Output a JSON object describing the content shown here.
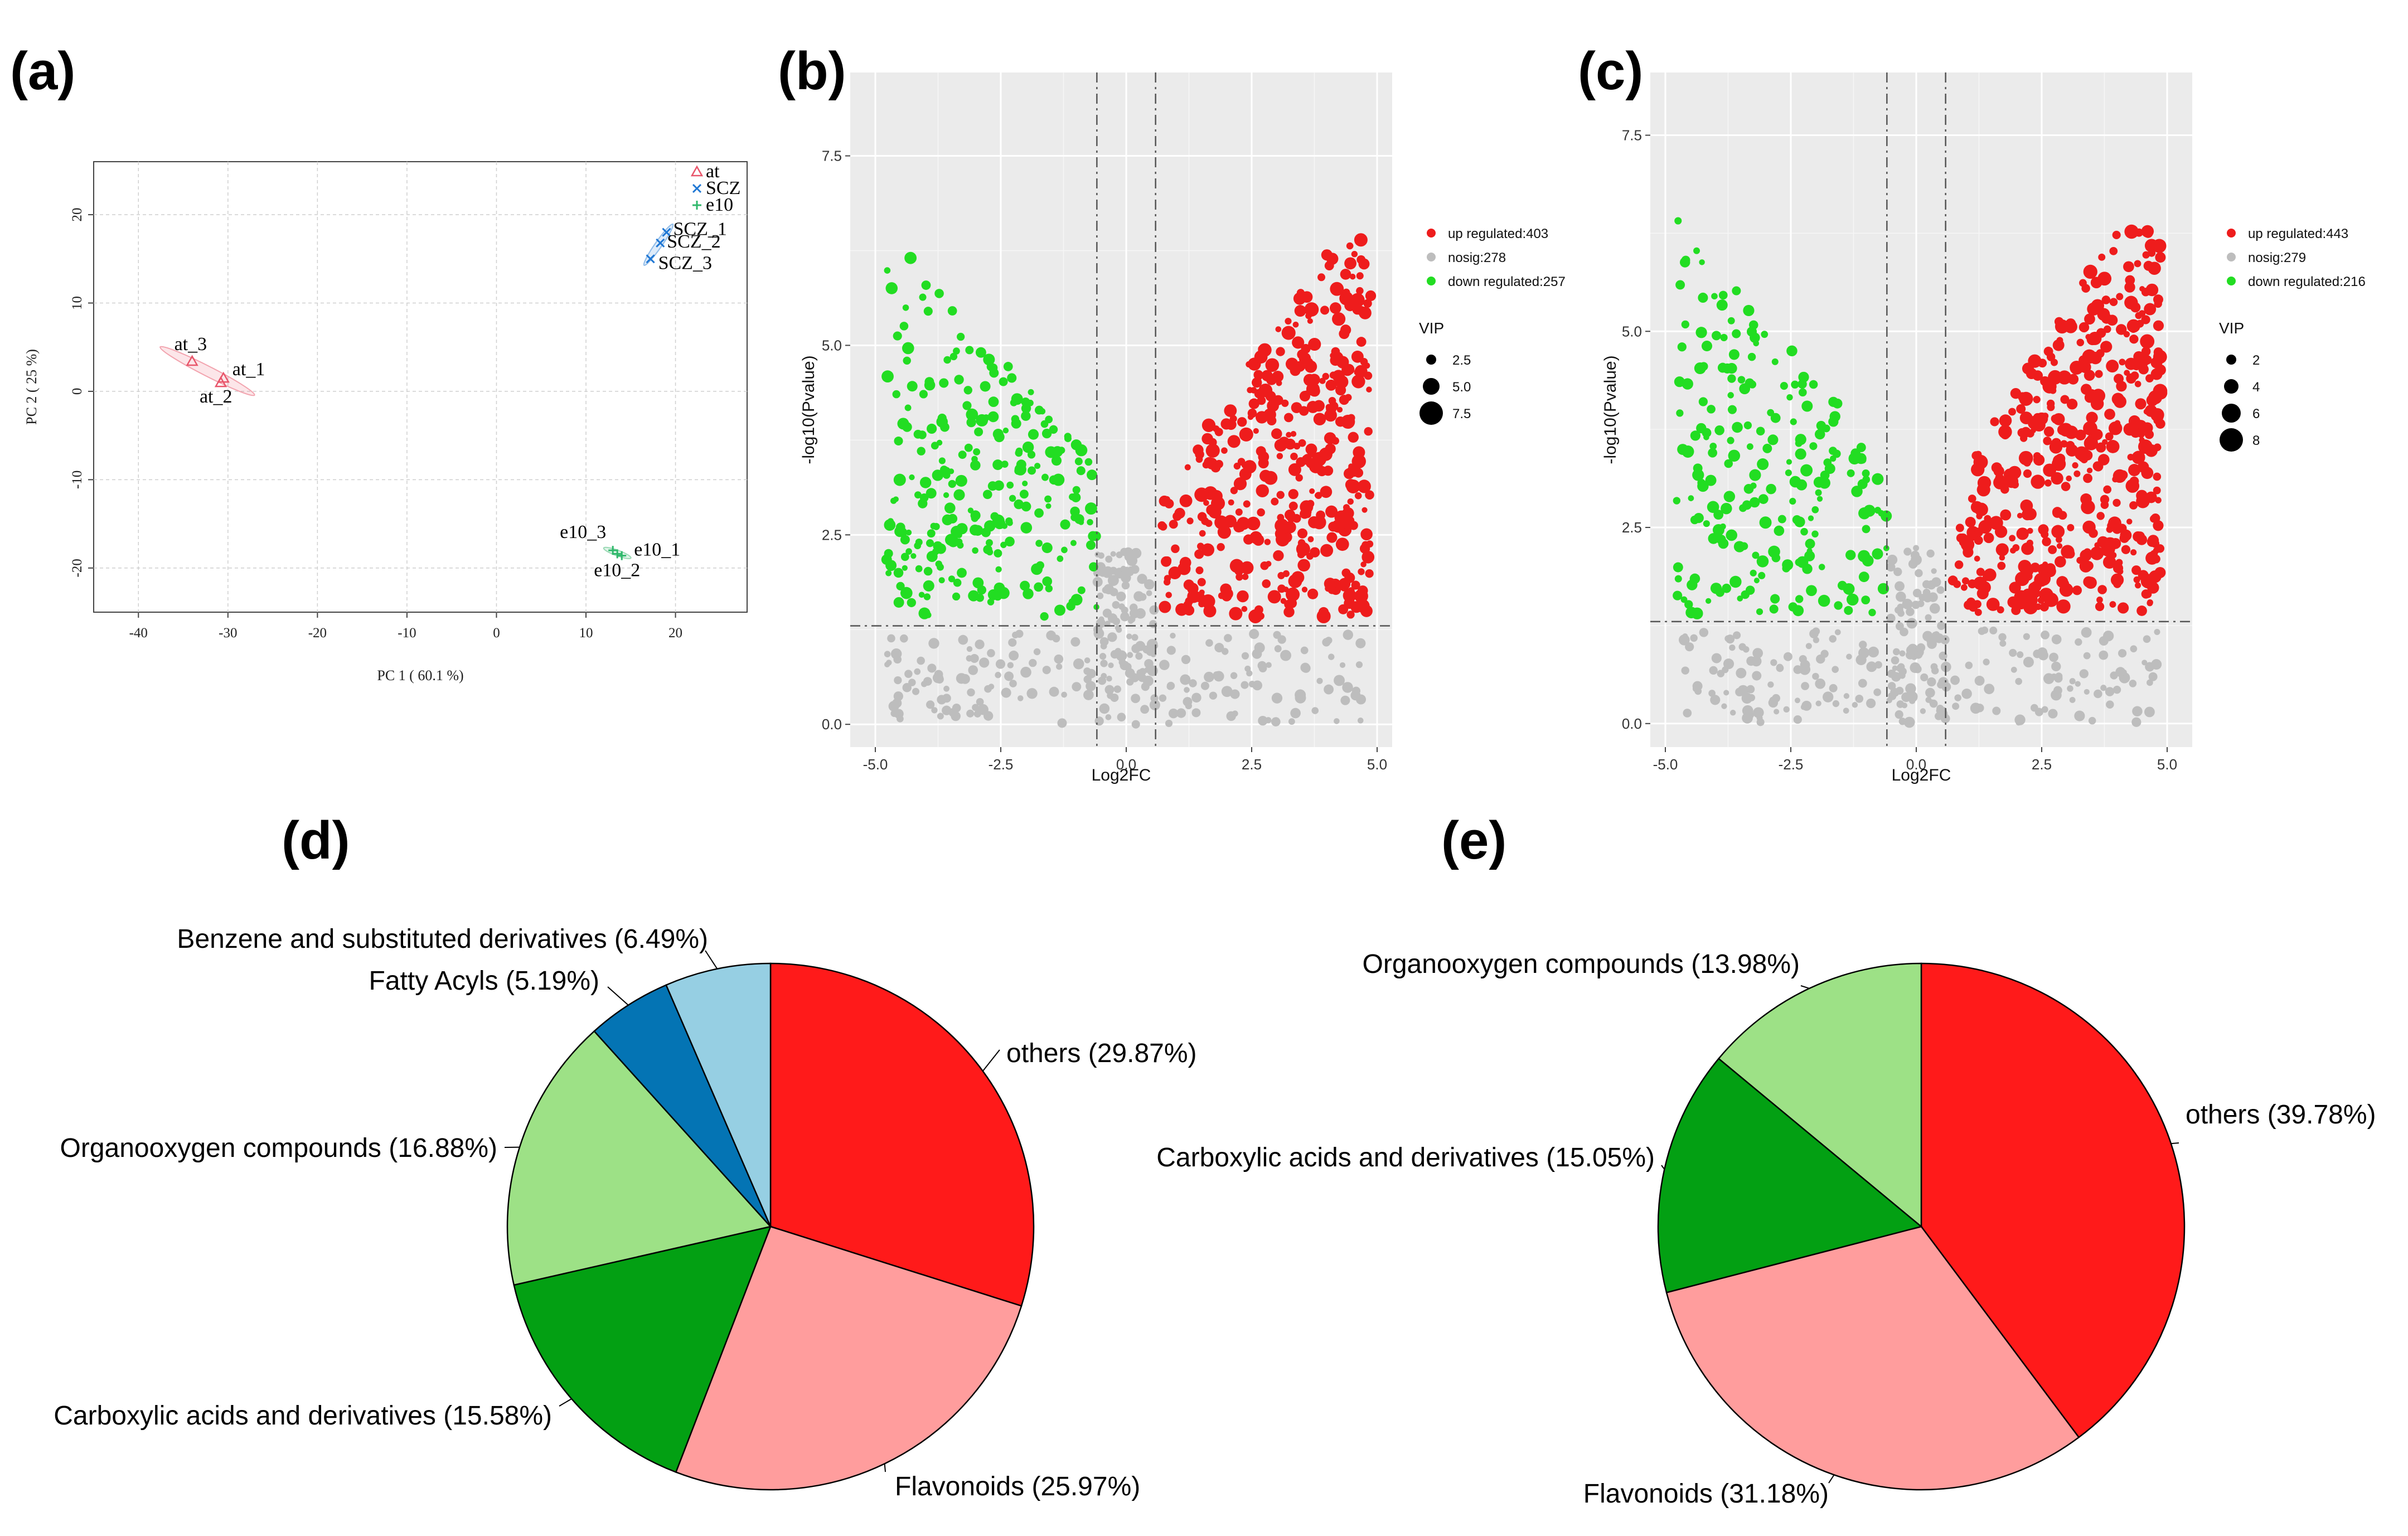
{
  "panel_labels": {
    "a": "(a)",
    "b": "(b)",
    "c": "(c)",
    "d": "(d)",
    "e": "(e)"
  },
  "colors": {
    "pca_at": "#e8556a",
    "pca_scz": "#1f77d4",
    "pca_e10": "#2fb86b",
    "up": "#ee1c1c",
    "nosig": "#bdbdbd",
    "down": "#22dd22",
    "pie_others": "#ff1a1a",
    "pie_flavonoids": "#ff9d9d",
    "pie_carboxylic": "#03a013",
    "pie_organooxygen": "#9de186",
    "pie_fatty": "#0474b4",
    "pie_benzene": "#96cfe3"
  },
  "chart_data": [
    {
      "type": "scatter",
      "panel": "(a)",
      "xlabel": "PC 1 ( 60.1 %)",
      "ylabel": "PC 2 ( 25 %)",
      "xlim": [
        -45,
        28
      ],
      "ylim": [
        -25,
        26
      ],
      "xticks": [
        -40,
        -30,
        -20,
        -10,
        0,
        10,
        20
      ],
      "yticks": [
        20,
        10,
        0,
        -10,
        -20
      ],
      "legend": [
        "at",
        "SCZ",
        "e10"
      ],
      "legend_position": "top-right",
      "grid": true,
      "series": [
        {
          "name": "at",
          "marker": "triangle",
          "points": [
            {
              "label": "at_1",
              "x": -30.5,
              "y": 1.5
            },
            {
              "label": "at_2",
              "x": -30.8,
              "y": 1.0
            },
            {
              "label": "at_3",
              "x": -34.0,
              "y": 3.4
            }
          ]
        },
        {
          "name": "SCZ",
          "marker": "x",
          "points": [
            {
              "label": "SCZ_1",
              "x": 19.0,
              "y": 18.0
            },
            {
              "label": "SCZ_2",
              "x": 18.3,
              "y": 16.8
            },
            {
              "label": "SCZ_3",
              "x": 17.2,
              "y": 15.0
            }
          ]
        },
        {
          "name": "e10",
          "marker": "plus",
          "points": [
            {
              "label": "e10_1",
              "x": 14.0,
              "y": -18.6
            },
            {
              "label": "e10_2",
              "x": 13.5,
              "y": -18.4
            },
            {
              "label": "e10_3",
              "x": 13.0,
              "y": -18.0
            }
          ]
        }
      ]
    },
    {
      "type": "scatter",
      "panel": "(b)",
      "xlabel": "Log2FC",
      "ylabel": "-log10(Pvalue)",
      "xlim": [
        -5.5,
        5.3
      ],
      "ylim": [
        -0.3,
        8.6
      ],
      "xticks": [
        "-5.0",
        "-2.5",
        "0.0",
        "2.5",
        "5.0"
      ],
      "yticks": [
        "0.0",
        "2.5",
        "5.0",
        "7.5"
      ],
      "thresholds": {
        "fc": [
          -0.585,
          0.585
        ],
        "pvalue_line": 1.3
      },
      "legend": [
        "up regulated:403",
        "nosig:278",
        "down regulated:257"
      ],
      "legend_position": "right",
      "size_legend": {
        "title": "VIP",
        "values": [
          "2.5",
          "5.0",
          "7.5"
        ]
      },
      "grid": true,
      "counts": {
        "up": 403,
        "nosig": 278,
        "down": 257
      }
    },
    {
      "type": "scatter",
      "panel": "(c)",
      "xlabel": "Log2FC",
      "ylabel": "-log10(Pvalue)",
      "xlim": [
        -5.3,
        5.5
      ],
      "ylim": [
        -0.3,
        8.3
      ],
      "xticks": [
        "-5.0",
        "-2.5",
        "0.0",
        "2.5",
        "5.0"
      ],
      "yticks": [
        "0.0",
        "2.5",
        "5.0",
        "7.5"
      ],
      "thresholds": {
        "fc": [
          -0.585,
          0.585
        ],
        "pvalue_line": 1.3
      },
      "legend": [
        "up regulated:443",
        "nosig:279",
        "down regulated:216"
      ],
      "legend_position": "right",
      "size_legend": {
        "title": "VIP",
        "values": [
          "2",
          "4",
          "6",
          "8"
        ]
      },
      "grid": true,
      "counts": {
        "up": 443,
        "nosig": 279,
        "down": 216
      }
    },
    {
      "type": "pie",
      "panel": "(d)",
      "slices": [
        {
          "label": "others (29.87%)",
          "value": 29.87,
          "color": "#ff1a1a"
        },
        {
          "label": "Flavonoids (25.97%)",
          "value": 25.97,
          "color": "#ff9d9d"
        },
        {
          "label": "Carboxylic acids and derivatives (15.58%)",
          "value": 15.58,
          "color": "#03a013"
        },
        {
          "label": "Organooxygen compounds (16.88%)",
          "value": 16.88,
          "color": "#9de186"
        },
        {
          "label": "Fatty Acyls (5.19%)",
          "value": 5.19,
          "color": "#0474b4"
        },
        {
          "label": "Benzene and substituted derivatives (6.49%)",
          "value": 6.49,
          "color": "#96cfe3"
        }
      ]
    },
    {
      "type": "pie",
      "panel": "(e)",
      "slices": [
        {
          "label": "others (39.78%)",
          "value": 39.78,
          "color": "#ff1a1a"
        },
        {
          "label": "Flavonoids (31.18%)",
          "value": 31.18,
          "color": "#ff9d9d"
        },
        {
          "label": "Carboxylic acids and derivatives (15.05%)",
          "value": 15.05,
          "color": "#03a013"
        },
        {
          "label": "Organooxygen compounds (13.98%)",
          "value": 13.98,
          "color": "#9de186"
        }
      ]
    }
  ]
}
